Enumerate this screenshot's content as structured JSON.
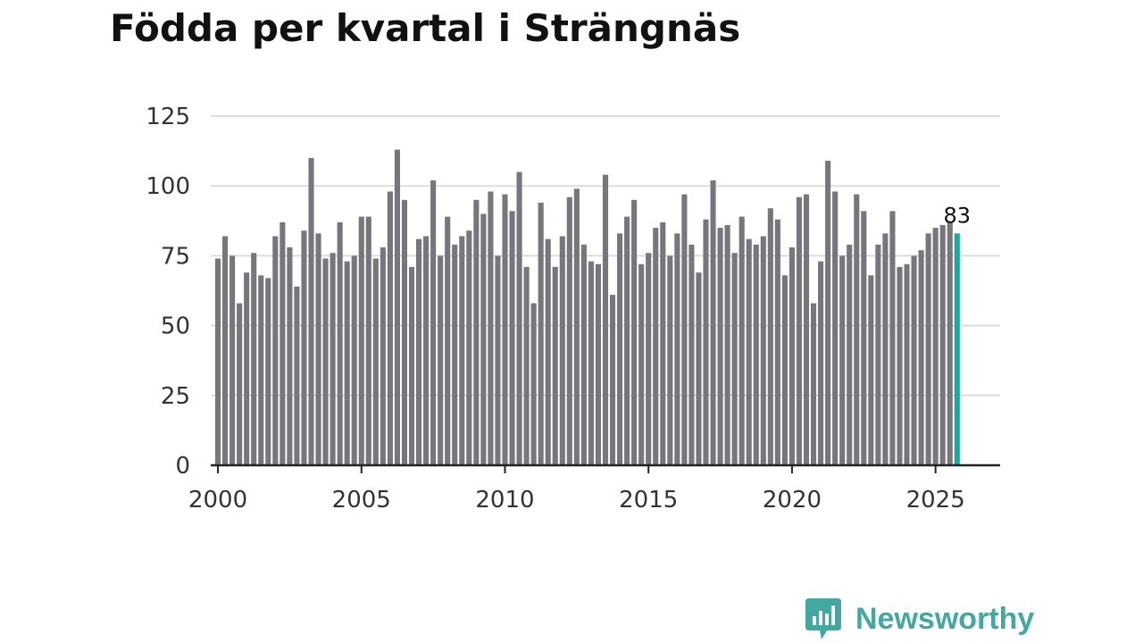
{
  "title": "Födda per kvartal i Strängnäs",
  "brand": {
    "name": "Newsworthy",
    "icon": "newsworthy-chart-bubble-icon",
    "color": "#43a8a0"
  },
  "chart_data": {
    "type": "bar",
    "title": "Födda per kvartal i Strängnäs",
    "xlabel": "",
    "ylabel": "",
    "ylim": [
      0,
      125
    ],
    "xlim": [
      1999.75,
      2027.25
    ],
    "yticks": [
      0,
      25,
      50,
      75,
      100,
      125
    ],
    "xticks": [
      2000,
      2005,
      2010,
      2015,
      2020,
      2025
    ],
    "grid": true,
    "legend": "none",
    "bar_color": "#77767c",
    "highlight_color": "#1aa99b",
    "axis_color": "#222222",
    "grid_color": "#dddddd",
    "x_start": "2000-Q1",
    "frequency": "quarter",
    "values": [
      74,
      82,
      75,
      58,
      69,
      76,
      68,
      67,
      82,
      87,
      78,
      64,
      84,
      110,
      83,
      74,
      76,
      87,
      73,
      75,
      89,
      89,
      74,
      78,
      98,
      113,
      95,
      71,
      81,
      82,
      102,
      75,
      89,
      79,
      82,
      84,
      95,
      90,
      98,
      75,
      97,
      91,
      105,
      71,
      58,
      94,
      81,
      71,
      82,
      96,
      99,
      79,
      73,
      72,
      104,
      61,
      83,
      89,
      95,
      72,
      76,
      85,
      87,
      75,
      83,
      97,
      79,
      69,
      88,
      102,
      85,
      86,
      76,
      89,
      81,
      79,
      82,
      92,
      88,
      68,
      78,
      96,
      97,
      58,
      73,
      109,
      98,
      75,
      79,
      97,
      91,
      68,
      79,
      83,
      91,
      71,
      72,
      75,
      77,
      83,
      85,
      86,
      87,
      83
    ],
    "highlight_index": 103,
    "annotations": [
      {
        "index": 103,
        "text": "83"
      }
    ]
  }
}
